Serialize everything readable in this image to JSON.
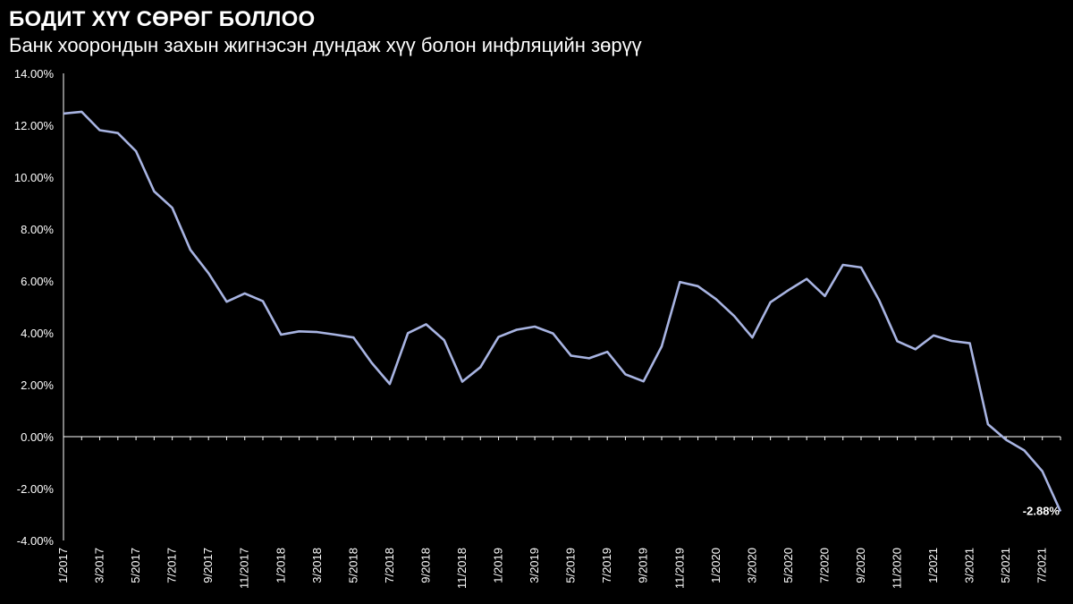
{
  "chart_data": {
    "type": "line",
    "title": "БОДИТ ХҮҮ СӨРӨГ БОЛЛОО",
    "subtitle": "Банк хоорондын захын жигнэсэн дундаж хүү болон инфляцийн зөрүү",
    "xlabel": "",
    "ylabel": "",
    "ylim": [
      -0.04,
      0.14
    ],
    "y_ticks": [
      "14.00%",
      "12.00%",
      "10.00%",
      "8.00%",
      "6.00%",
      "4.00%",
      "2.00%",
      "0.00%",
      "-2.00%",
      "-4.00%"
    ],
    "x_tick_labels": [
      "1/2017",
      "3/2017",
      "5/2017",
      "7/2017",
      "9/2017",
      "11/2017",
      "1/2018",
      "3/2018",
      "5/2018",
      "7/2018",
      "9/2018",
      "11/2018",
      "1/2019",
      "3/2019",
      "5/2019",
      "7/2019",
      "9/2019",
      "11/2019",
      "1/2020",
      "3/2020",
      "5/2020",
      "7/2020",
      "9/2020",
      "11/2020",
      "1/2021",
      "3/2021",
      "5/2021",
      "7/2021"
    ],
    "x": [
      "1/2017",
      "2/2017",
      "3/2017",
      "4/2017",
      "5/2017",
      "6/2017",
      "7/2017",
      "8/2017",
      "9/2017",
      "10/2017",
      "11/2017",
      "12/2017",
      "1/2018",
      "2/2018",
      "3/2018",
      "4/2018",
      "5/2018",
      "6/2018",
      "7/2018",
      "8/2018",
      "9/2018",
      "10/2018",
      "11/2018",
      "12/2018",
      "1/2019",
      "2/2019",
      "3/2019",
      "4/2019",
      "5/2019",
      "6/2019",
      "7/2019",
      "8/2019",
      "9/2019",
      "10/2019",
      "11/2019",
      "12/2019",
      "1/2020",
      "2/2020",
      "3/2020",
      "4/2020",
      "5/2020",
      "6/2020",
      "7/2020",
      "8/2020",
      "9/2020",
      "10/2020",
      "11/2020",
      "12/2020",
      "1/2021",
      "2/2021",
      "3/2021",
      "4/2021",
      "5/2021",
      "6/2021",
      "7/2021",
      "8/2021"
    ],
    "series": [
      {
        "name": "",
        "color": "#a8b4e2",
        "values": [
          0.1245,
          0.1252,
          0.1181,
          0.117,
          0.11,
          0.0945,
          0.0882,
          0.072,
          0.063,
          0.052,
          0.0552,
          0.0522,
          0.0393,
          0.0406,
          0.0403,
          0.0393,
          0.0382,
          0.0285,
          0.0203,
          0.0399,
          0.0433,
          0.0372,
          0.0212,
          0.0268,
          0.0384,
          0.0412,
          0.0424,
          0.0398,
          0.0312,
          0.0302,
          0.0327,
          0.024,
          0.0213,
          0.0348,
          0.0596,
          0.058,
          0.053,
          0.0465,
          0.0382,
          0.0518,
          0.0565,
          0.0608,
          0.0542,
          0.0662,
          0.0652,
          0.0525,
          0.0368,
          0.0337,
          0.039,
          0.0369,
          0.036,
          0.0048,
          -0.0012,
          -0.0053,
          -0.0133,
          -0.0288
        ]
      }
    ],
    "annotation": {
      "label": "-2.88%"
    },
    "grid": false,
    "legend": "none"
  }
}
